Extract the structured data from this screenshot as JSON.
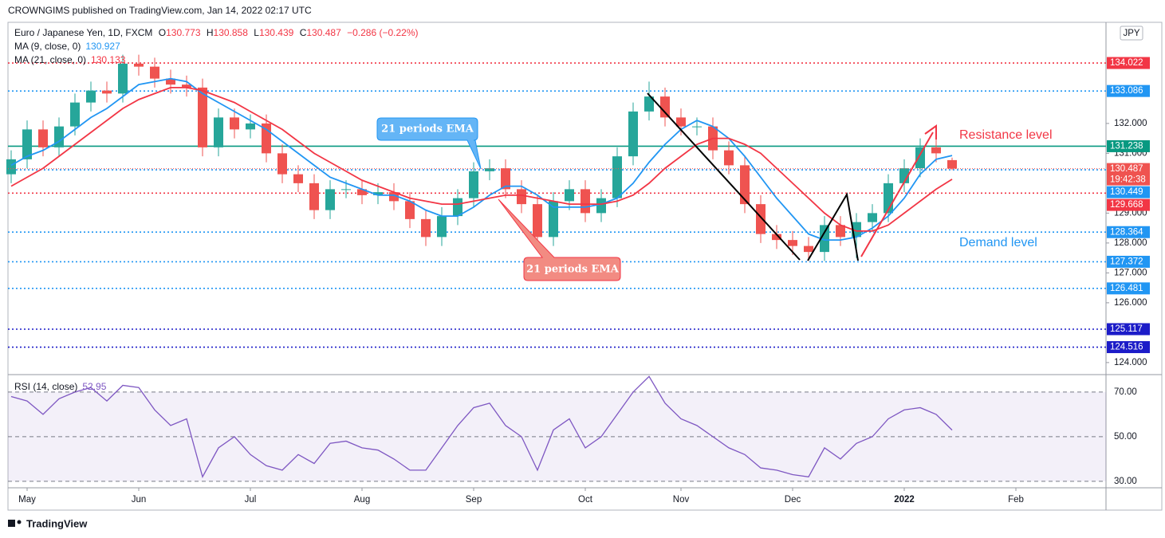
{
  "header": {
    "publisher": "CROWNGIMS published on TradingView.com, Jan 14, 2022 02:17 UTC",
    "brand": "TradingView"
  },
  "chart_data": [
    {
      "type": "candlestick",
      "symbol": "Euro / Japanese Yen, 1D, FXCM",
      "currency": "JPY",
      "ohlc_labels": [
        "O",
        "H",
        "L",
        "C"
      ],
      "change": "−0.286 (−0.22%)",
      "open": [
        130.3,
        130.8,
        131.8,
        131.2,
        131.9,
        132.7,
        133.1,
        133.0,
        134.0,
        133.9,
        133.5,
        133.3,
        133.2,
        131.2,
        132.2,
        131.8,
        132.0,
        131.0,
        130.3,
        130.0,
        129.1,
        129.8,
        129.8,
        129.6,
        129.7,
        129.4,
        128.8,
        128.2,
        128.9,
        129.5,
        130.4,
        130.5,
        129.8,
        129.3,
        128.2,
        129.4,
        129.8,
        129.0,
        129.5,
        130.9,
        132.4,
        132.9,
        132.2,
        131.9,
        131.9,
        131.1,
        130.6,
        129.3,
        128.3,
        128.1,
        127.9,
        127.7,
        128.6,
        128.2,
        128.7,
        129.0,
        130.0,
        130.5,
        131.2,
        130.773
      ],
      "high": [
        131.1,
        132.1,
        132.1,
        132.2,
        133.0,
        133.4,
        133.4,
        134.3,
        134.3,
        134.2,
        133.8,
        133.6,
        133.5,
        132.5,
        132.5,
        132.3,
        132.3,
        131.3,
        130.6,
        130.3,
        130.1,
        130.1,
        130.1,
        130.0,
        130.0,
        129.7,
        129.1,
        129.2,
        129.8,
        130.7,
        130.8,
        130.8,
        130.1,
        129.6,
        129.7,
        130.1,
        130.1,
        129.8,
        131.2,
        132.7,
        133.4,
        133.2,
        132.5,
        132.2,
        132.2,
        131.4,
        130.9,
        129.6,
        128.6,
        128.4,
        128.2,
        128.9,
        128.9,
        129.0,
        129.3,
        130.3,
        130.8,
        131.5,
        131.5,
        130.858
      ],
      "low": [
        130.0,
        130.5,
        130.9,
        130.9,
        131.6,
        132.4,
        132.7,
        132.7,
        133.6,
        133.2,
        133.0,
        132.9,
        130.9,
        130.9,
        131.5,
        131.5,
        130.7,
        130.0,
        129.7,
        128.8,
        128.8,
        129.5,
        129.3,
        129.3,
        129.1,
        128.5,
        127.9,
        127.9,
        128.6,
        129.2,
        130.1,
        129.5,
        129.0,
        127.9,
        127.9,
        129.1,
        128.7,
        128.7,
        129.2,
        130.6,
        132.1,
        131.9,
        131.6,
        131.6,
        130.8,
        130.3,
        129.0,
        128.0,
        127.8,
        127.6,
        127.4,
        127.4,
        127.9,
        127.5,
        128.4,
        128.7,
        129.7,
        130.2,
        130.7,
        130.439
      ],
      "close": [
        130.8,
        131.8,
        131.2,
        131.9,
        132.7,
        133.1,
        133.0,
        134.0,
        133.9,
        133.5,
        133.3,
        133.2,
        131.2,
        132.2,
        131.8,
        132.0,
        131.0,
        130.3,
        130.0,
        129.1,
        129.8,
        129.8,
        129.6,
        129.7,
        129.4,
        128.8,
        128.2,
        128.9,
        129.5,
        130.4,
        130.5,
        129.8,
        129.3,
        128.2,
        129.4,
        129.8,
        129.0,
        129.5,
        130.9,
        132.4,
        132.9,
        132.2,
        131.9,
        131.9,
        131.1,
        130.6,
        129.3,
        128.3,
        128.1,
        127.9,
        127.7,
        128.6,
        128.2,
        128.7,
        129.0,
        130.0,
        130.5,
        131.2,
        131.0,
        130.487
      ],
      "up_color": "#26a69a",
      "down_color": "#ef5350",
      "series": [
        {
          "name": "MA (9, close, 0)",
          "color": "#2196f3",
          "values": [
            130.6,
            130.9,
            131.1,
            131.4,
            131.8,
            132.2,
            132.5,
            132.9,
            133.3,
            133.4,
            133.5,
            133.4,
            133.0,
            132.7,
            132.4,
            132.1,
            131.8,
            131.4,
            131.0,
            130.6,
            130.2,
            130.0,
            129.8,
            129.6,
            129.6,
            129.4,
            129.1,
            128.9,
            128.9,
            129.2,
            129.6,
            129.9,
            129.9,
            129.6,
            129.2,
            129.2,
            129.2,
            129.3,
            129.5,
            130.0,
            130.7,
            131.3,
            131.8,
            132.1,
            131.9,
            131.5,
            130.9,
            130.2,
            129.5,
            128.9,
            128.3,
            128.1,
            128.1,
            128.2,
            128.5,
            128.9,
            129.5,
            130.3,
            130.8,
            130.927
          ]
        },
        {
          "name": "MA (21, close, 0)",
          "color": "#f23645",
          "values": [
            129.9,
            130.2,
            130.5,
            130.9,
            131.3,
            131.7,
            132.1,
            132.5,
            132.8,
            133.0,
            133.2,
            133.2,
            133.1,
            132.9,
            132.7,
            132.4,
            132.1,
            131.8,
            131.4,
            131.0,
            130.7,
            130.4,
            130.1,
            129.9,
            129.7,
            129.5,
            129.4,
            129.3,
            129.3,
            129.4,
            129.5,
            129.6,
            129.6,
            129.5,
            129.4,
            129.3,
            129.3,
            129.3,
            129.4,
            129.6,
            130.0,
            130.5,
            130.9,
            131.3,
            131.5,
            131.5,
            131.3,
            131.0,
            130.5,
            130.0,
            129.5,
            129.0,
            128.6,
            128.4,
            128.4,
            128.6,
            129.0,
            129.4,
            129.8,
            130.133
          ]
        }
      ],
      "xlim": [
        -0.2,
        68.65
      ],
      "xticks": [
        {
          "value": 1,
          "label": "May"
        },
        {
          "value": 8,
          "label": "Jun"
        },
        {
          "value": 15,
          "label": "Jul"
        },
        {
          "value": 22,
          "label": "Aug"
        },
        {
          "value": 29,
          "label": "Sep"
        },
        {
          "value": 36,
          "label": "Oct"
        },
        {
          "value": 42,
          "label": "Nov"
        },
        {
          "value": 49,
          "label": "Dec"
        },
        {
          "value": 56,
          "label": "2022"
        },
        {
          "value": 63,
          "label": "Feb"
        }
      ],
      "ylim": [
        123.65,
        135.33
      ],
      "yticks": [
        {
          "value": 124,
          "label": "124.000"
        },
        {
          "value": 126,
          "label": "126.000"
        },
        {
          "value": 127,
          "label": "127.000"
        },
        {
          "value": 128,
          "label": "128.000"
        },
        {
          "value": 129,
          "label": "129.000"
        },
        {
          "value": 131,
          "label": "131.000"
        },
        {
          "value": 132,
          "label": "132.000"
        }
      ],
      "levels": [
        {
          "value": 134.022,
          "color": "#f23645",
          "style": "dotted"
        },
        {
          "value": 133.086,
          "color": "#2196f3",
          "style": "dotted"
        },
        {
          "value": 131.238,
          "color": "#089981",
          "style": "solid"
        },
        {
          "value": 130.449,
          "color": "#2196f3",
          "style": "dotted"
        },
        {
          "value": 129.668,
          "color": "#f23645",
          "style": "dotted"
        },
        {
          "value": 128.364,
          "color": "#2196f3",
          "style": "dotted"
        },
        {
          "value": 127.372,
          "color": "#2196f3",
          "style": "dotted"
        },
        {
          "value": 126.481,
          "color": "#2196f3",
          "style": "dotted"
        },
        {
          "value": 125.117,
          "color": "#1c1cc8",
          "style": "dotted"
        },
        {
          "value": 124.516,
          "color": "#1c1cc8",
          "style": "dotted"
        }
      ],
      "countdown": "19:42:38",
      "annotations": [
        "21 periods EMA",
        "21 periods EMA",
        "Resistance level",
        "Demand level"
      ]
    },
    {
      "type": "line",
      "series": [
        {
          "name": "RSI (14, close)",
          "color": "#7e57c2",
          "values": [
            68,
            66,
            60,
            67,
            70,
            72,
            66,
            73,
            72,
            62,
            55,
            58,
            32,
            45,
            50,
            42,
            37,
            35,
            42,
            38,
            47,
            48,
            45,
            44,
            40,
            35,
            35,
            45,
            55,
            63,
            65,
            55,
            50,
            35,
            53,
            58,
            45,
            50,
            60,
            70,
            77,
            65,
            58,
            55,
            50,
            45,
            42,
            36,
            35,
            33,
            32,
            45,
            40,
            47,
            50,
            58,
            62,
            63,
            60,
            52.95
          ]
        }
      ],
      "ylim": [
        27.1,
        77.1
      ],
      "yticks": [
        {
          "value": 30,
          "label": "30.00"
        },
        {
          "value": 50,
          "label": "50.00"
        },
        {
          "value": 70,
          "label": "70.00"
        }
      ]
    }
  ]
}
